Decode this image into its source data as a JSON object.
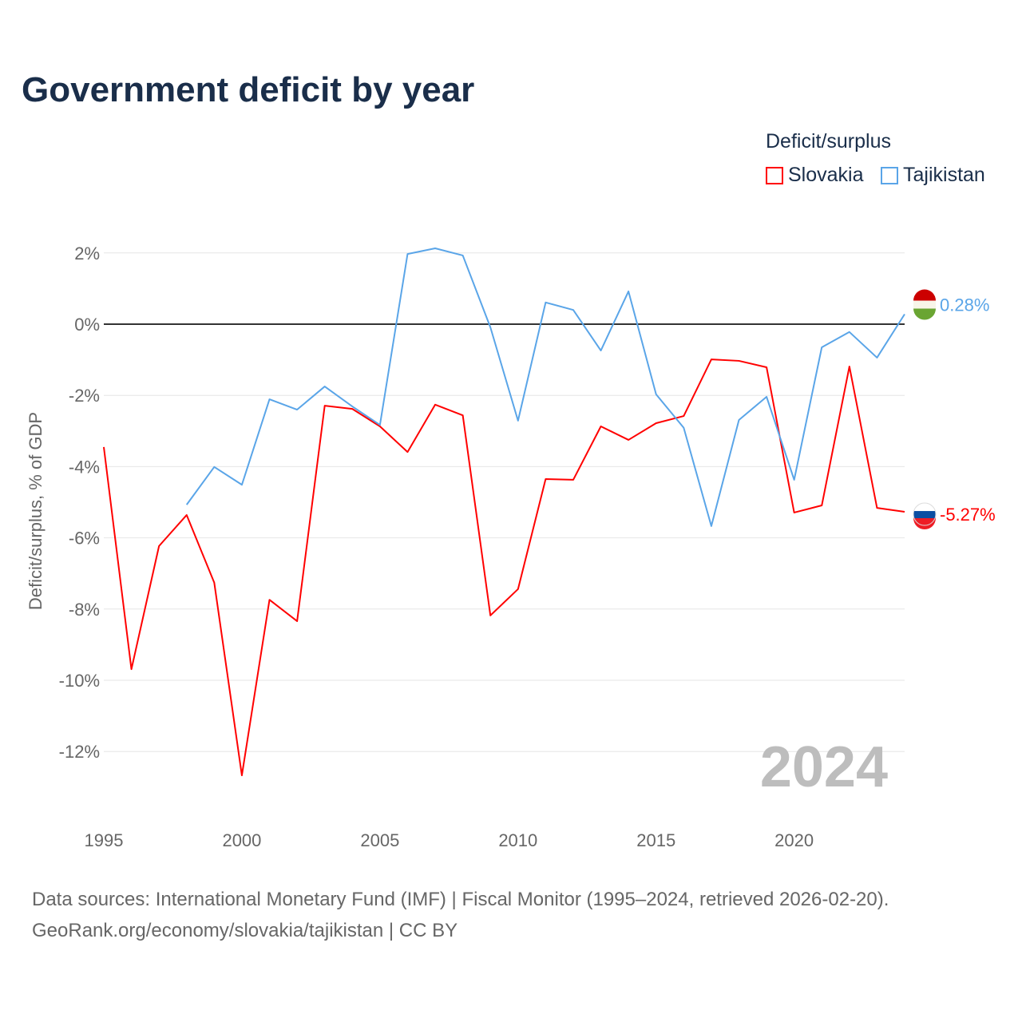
{
  "chart_data": {
    "type": "line",
    "title": "Government deficit by year",
    "ylabel": "Deficit/surplus, % of GDP",
    "xlabel": "",
    "legend_title": "Deficit/surplus",
    "legend_position": "top-right",
    "xlim": [
      1995,
      2024
    ],
    "ylim": [
      -13.5,
      2.5
    ],
    "x_ticks": [
      1995,
      2000,
      2005,
      2010,
      2015,
      2020
    ],
    "x_tick_labels": [
      "1995",
      "2000",
      "2005",
      "2010",
      "2015",
      "2020"
    ],
    "y_ticks": [
      2,
      0,
      -2,
      -4,
      -6,
      -8,
      -10,
      -12
    ],
    "y_tick_labels": [
      "2%",
      "0%",
      "-2%",
      "-4%",
      "-6%",
      "-8%",
      "-10%",
      "-12%"
    ],
    "grid": true,
    "year_watermark": "2024",
    "series": [
      {
        "name": "Slovakia",
        "color": "#ff0000",
        "end_label": "-5.27%",
        "x": [
          1995,
          1996,
          1997,
          1998,
          1999,
          2000,
          2001,
          2002,
          2003,
          2004,
          2005,
          2006,
          2007,
          2008,
          2009,
          2010,
          2011,
          2012,
          2013,
          2014,
          2015,
          2016,
          2017,
          2018,
          2019,
          2020,
          2021,
          2022,
          2023,
          2024
        ],
        "values": [
          -3.45,
          -9.69,
          -6.23,
          -5.36,
          -7.26,
          -12.67,
          -7.74,
          -8.34,
          -2.29,
          -2.38,
          -2.87,
          -3.59,
          -2.26,
          -2.56,
          -8.18,
          -7.44,
          -4.35,
          -4.37,
          -2.87,
          -3.25,
          -2.78,
          -2.58,
          -0.99,
          -1.03,
          -1.21,
          -5.29,
          -5.09,
          -1.19,
          -5.16,
          -5.27
        ]
      },
      {
        "name": "Tajikistan",
        "color": "#5aa5e8",
        "end_label": "0.28%",
        "x": [
          1998,
          1999,
          2000,
          2001,
          2002,
          2003,
          2004,
          2005,
          2006,
          2007,
          2008,
          2009,
          2010,
          2011,
          2012,
          2013,
          2014,
          2015,
          2016,
          2017,
          2018,
          2019,
          2020,
          2021,
          2022,
          2023,
          2024
        ],
        "values": [
          -5.07,
          -4.01,
          -4.51,
          -2.11,
          -2.4,
          -1.75,
          -2.31,
          -2.83,
          1.97,
          2.13,
          1.93,
          -0.09,
          -2.71,
          0.61,
          0.4,
          -0.74,
          0.92,
          -1.97,
          -2.91,
          -5.67,
          -2.69,
          -2.04,
          -4.37,
          -0.65,
          -0.22,
          -0.94,
          0.28
        ]
      }
    ]
  },
  "source": {
    "line1": "Data sources: International Monetary Fund (IMF) | Fiscal Monitor (1995–2024, retrieved 2026-02-20).",
    "line2": "GeoRank.org/economy/slovakia/tajikistan | CC BY"
  }
}
